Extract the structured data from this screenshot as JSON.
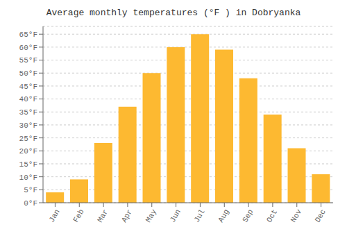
{
  "chart_data": {
    "type": "bar",
    "title": "Average monthly temperatures (°F ) in Dobryanka",
    "categories": [
      "Jan",
      "Feb",
      "Mar",
      "Apr",
      "May",
      "Jun",
      "Jul",
      "Aug",
      "Sep",
      "Oct",
      "Nov",
      "Dec"
    ],
    "values": [
      4,
      9,
      23,
      37,
      50,
      60,
      65,
      59,
      48,
      34,
      21,
      11
    ],
    "color": "#FDB931",
    "ylim": [
      0,
      68
    ],
    "yticks": [
      {
        "value": 0,
        "label": "0°F"
      },
      {
        "value": 5,
        "label": "5°F"
      },
      {
        "value": 10,
        "label": "10°F"
      },
      {
        "value": 15,
        "label": "15°F"
      },
      {
        "value": 20,
        "label": "20°F"
      },
      {
        "value": 25,
        "label": "25°F"
      },
      {
        "value": 30,
        "label": "30°F"
      },
      {
        "value": 35,
        "label": "35°F"
      },
      {
        "value": 40,
        "label": "40°F"
      },
      {
        "value": 45,
        "label": "45°F"
      },
      {
        "value": 50,
        "label": "50°F"
      },
      {
        "value": 55,
        "label": "55°F"
      },
      {
        "value": 60,
        "label": "60°F"
      },
      {
        "value": 65,
        "label": "65°F"
      }
    ],
    "grid": true
  }
}
